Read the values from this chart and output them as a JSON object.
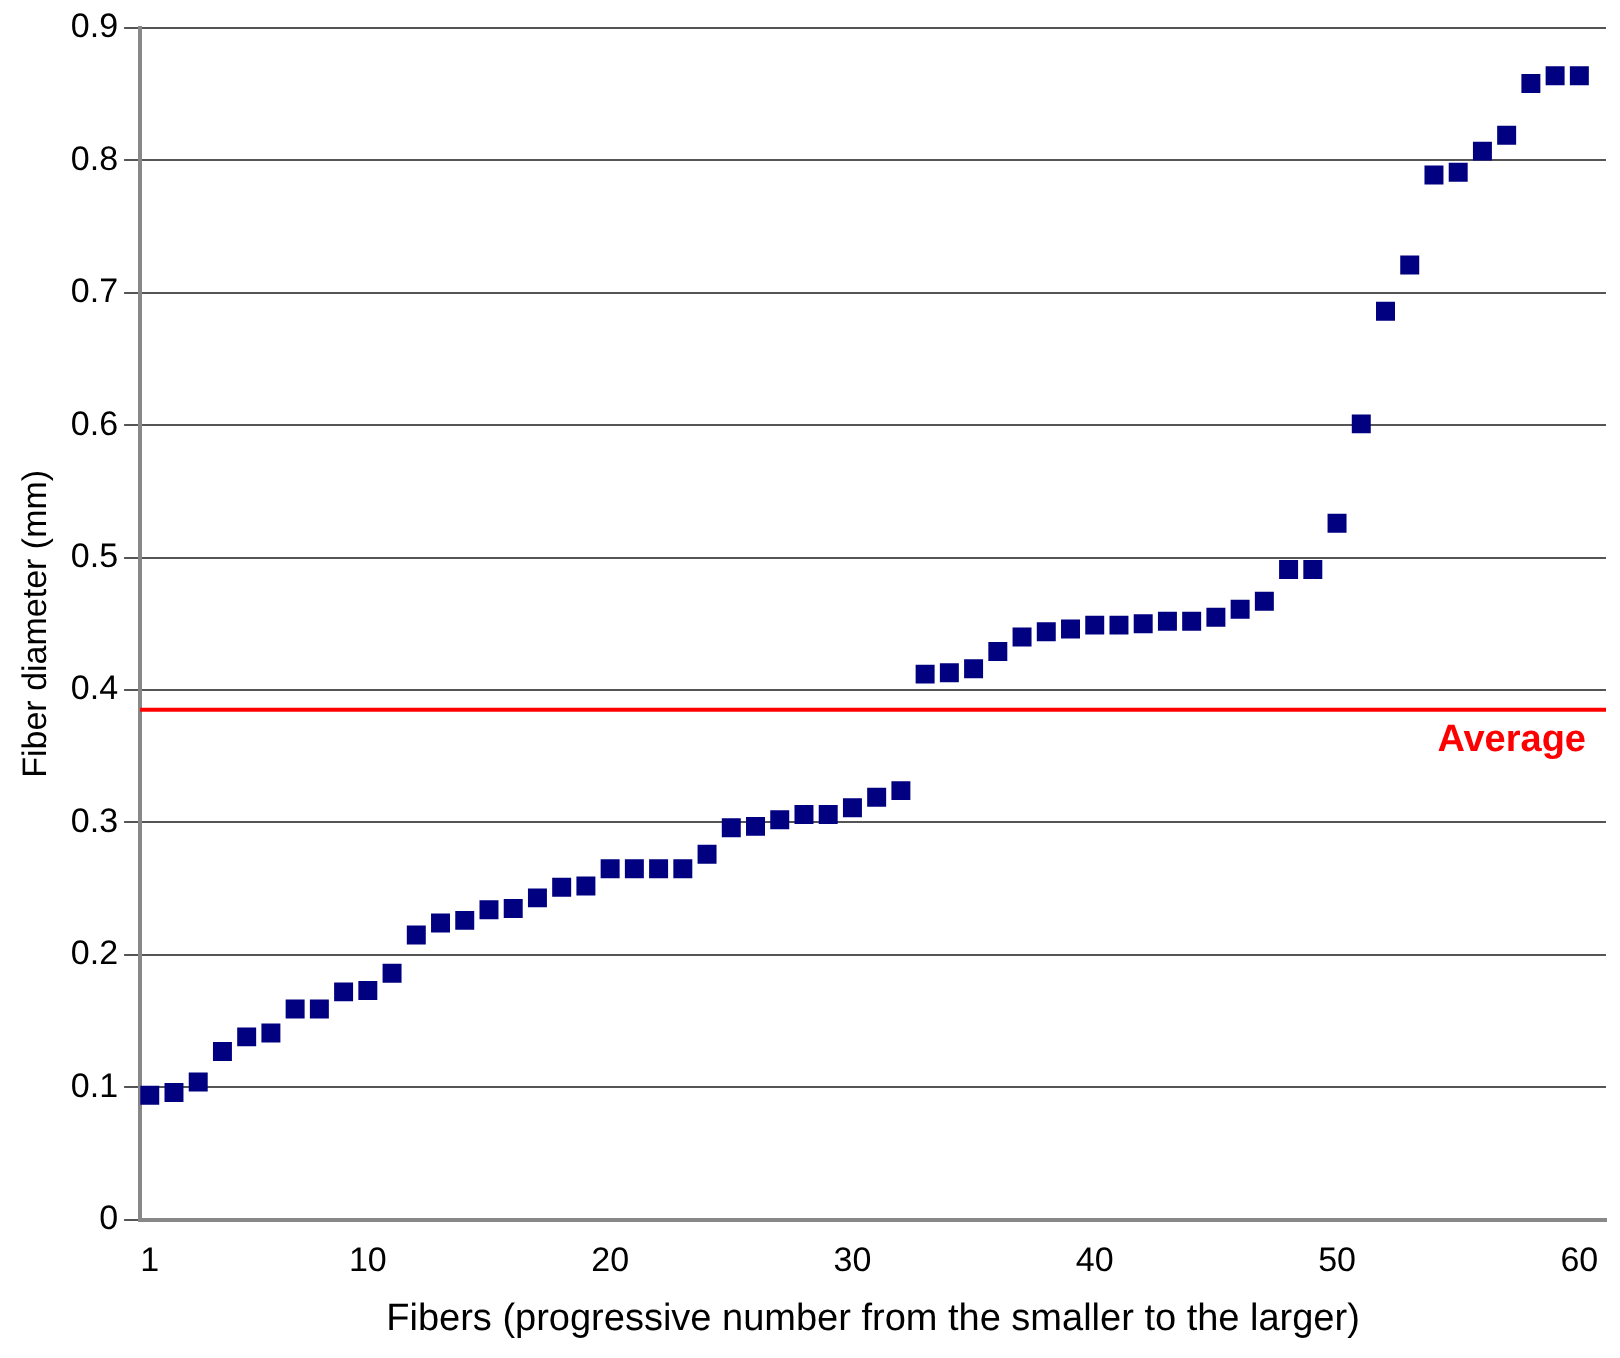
{
  "chart_data": {
    "type": "scatter",
    "xlabel": "Fibers (progressive number from the smaller to the larger)",
    "ylabel": "Fiber diameter (mm)",
    "x": [
      1,
      2,
      3,
      4,
      5,
      6,
      7,
      8,
      9,
      10,
      11,
      12,
      13,
      14,
      15,
      16,
      17,
      18,
      19,
      20,
      21,
      22,
      23,
      24,
      25,
      26,
      27,
      28,
      29,
      30,
      31,
      32,
      33,
      34,
      35,
      36,
      37,
      38,
      39,
      40,
      41,
      42,
      43,
      44,
      45,
      46,
      47,
      48,
      49,
      50,
      51,
      52,
      53,
      54,
      55,
      56,
      57,
      58,
      59,
      60
    ],
    "series": [
      {
        "color": "#000080",
        "values": [
          0.094,
          0.096,
          0.104,
          0.127,
          0.138,
          0.141,
          0.159,
          0.159,
          0.172,
          0.173,
          0.186,
          0.215,
          0.224,
          0.226,
          0.234,
          0.235,
          0.243,
          0.251,
          0.252,
          0.265,
          0.265,
          0.265,
          0.265,
          0.276,
          0.296,
          0.297,
          0.302,
          0.306,
          0.306,
          0.311,
          0.319,
          0.324,
          0.412,
          0.413,
          0.416,
          0.429,
          0.44,
          0.444,
          0.446,
          0.449,
          0.449,
          0.45,
          0.452,
          0.452,
          0.455,
          0.461,
          0.467,
          0.491,
          0.491,
          0.526,
          0.601,
          0.686,
          0.721,
          0.789,
          0.791,
          0.807,
          0.819,
          0.858,
          0.864,
          0.864
        ]
      }
    ],
    "xlim": [
      0.6,
      61.1
    ],
    "xticks": [
      1,
      10,
      20,
      30,
      40,
      50,
      60
    ],
    "ylim": [
      0,
      0.9
    ],
    "yticks": [
      0,
      0.1,
      0.2,
      0.3,
      0.4,
      0.5,
      0.6,
      0.7,
      0.8,
      0.9
    ],
    "ref_lines": [
      {
        "axis": "y",
        "value": 0.385,
        "label": "Average",
        "color": "#ff0000"
      }
    ],
    "grid": "y",
    "legend": false,
    "marker": "square"
  }
}
